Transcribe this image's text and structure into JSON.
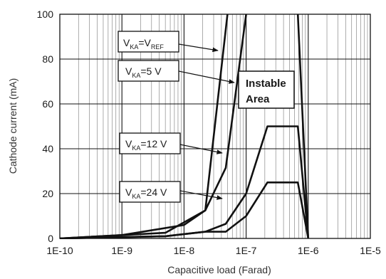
{
  "chart_data": {
    "type": "line",
    "title": "",
    "xlabel": "Capacitive load (Farad)",
    "ylabel": "Cathode current (mA)",
    "xscale": "log",
    "xlim": [
      1e-10,
      1e-05
    ],
    "ylim": [
      0,
      100
    ],
    "grid": true,
    "x_tick_labels": [
      "1E-10",
      "1E-9",
      "1E-8",
      "1E-7",
      "1E-6",
      "1E-5"
    ],
    "y_tick_labels": [
      "0",
      "20",
      "40",
      "60",
      "80",
      "100"
    ],
    "series": [
      {
        "id": "vref",
        "label_main": "V",
        "label_sub": "KA",
        "label_mid": "=V",
        "label_sub2": "REF",
        "label_suffix": "",
        "points": [
          [
            1e-10,
            0
          ],
          [
            5e-09,
            2.5
          ],
          [
            2.2e-08,
            12.5
          ],
          [
            5e-08,
            100
          ]
        ]
      },
      {
        "id": "v5",
        "label_main": "V",
        "label_sub": "KA",
        "label_mid": "=5 V",
        "label_sub2": "",
        "label_suffix": "",
        "points": [
          [
            1e-10,
            0
          ],
          [
            1e-09,
            1.5
          ],
          [
            1e-08,
            6
          ],
          [
            2.2e-08,
            12.5
          ],
          [
            4.7e-08,
            31.5
          ],
          [
            1e-07,
            100
          ]
        ]
      },
      {
        "id": "v12",
        "label_main": "V",
        "label_sub": "KA",
        "label_mid": "=12 V",
        "label_sub2": "",
        "label_suffix": "",
        "points": [
          [
            1e-10,
            0
          ],
          [
            5e-09,
            1
          ],
          [
            2.2e-08,
            3
          ],
          [
            4.7e-08,
            6.5
          ],
          [
            1e-07,
            20
          ],
          [
            2.2e-07,
            50
          ],
          [
            6.8e-07,
            50
          ],
          [
            1e-06,
            0
          ]
        ]
      },
      {
        "id": "v24",
        "label_main": "V",
        "label_sub": "KA",
        "label_mid": "=24 V",
        "label_sub2": "",
        "label_suffix": "",
        "points": [
          [
            1e-10,
            0
          ],
          [
            5e-09,
            1
          ],
          [
            2.2e-08,
            3
          ],
          [
            4.7e-08,
            3
          ],
          [
            1e-07,
            10
          ],
          [
            2.2e-07,
            25
          ],
          [
            6.8e-07,
            25
          ],
          [
            1e-06,
            0
          ]
        ]
      }
    ],
    "boundary_line": [
      [
        6.8e-07,
        100
      ],
      [
        1e-06,
        0
      ]
    ],
    "annotation": {
      "line1": "Instable",
      "line2": "Area"
    }
  }
}
